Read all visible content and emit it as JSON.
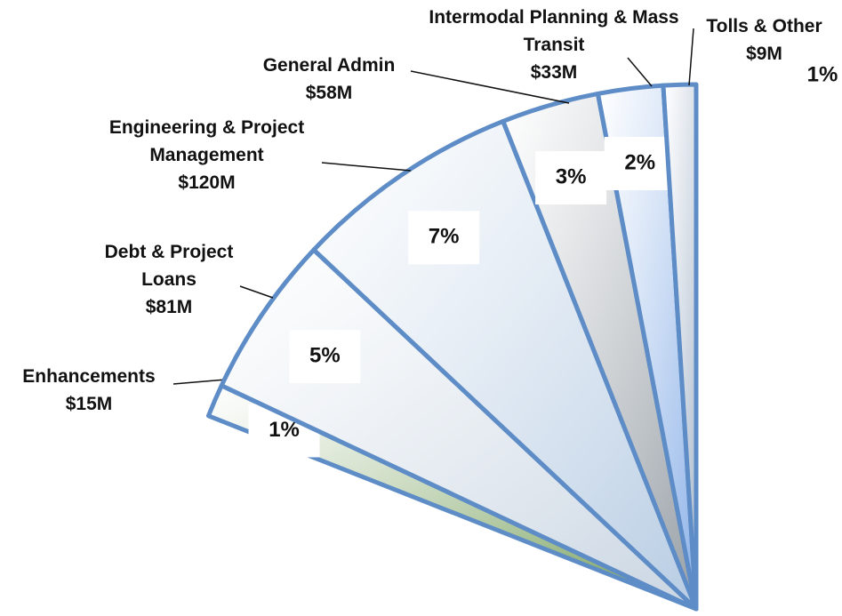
{
  "chart_data": {
    "type": "pie",
    "categories": [
      "Enhancements",
      "Debt & Project Loans",
      "Engineering & Project Management",
      "General Admin",
      "Intermodal Planning & Mass Transit",
      "Tolls & Other"
    ],
    "amounts": [
      "$15M",
      "$81M",
      "$120M",
      "$58M",
      "$33M",
      "$9M"
    ],
    "values": [
      1,
      5,
      7,
      3,
      2,
      1
    ],
    "value_labels": [
      "1%",
      "5%",
      "7%",
      "3%",
      "2%",
      "1%"
    ],
    "colors": [
      "#6f9a52",
      "#c9d5e2",
      "#b7cce3",
      "#979fa6",
      "#8db2e8",
      "#a9b8cb"
    ]
  }
}
